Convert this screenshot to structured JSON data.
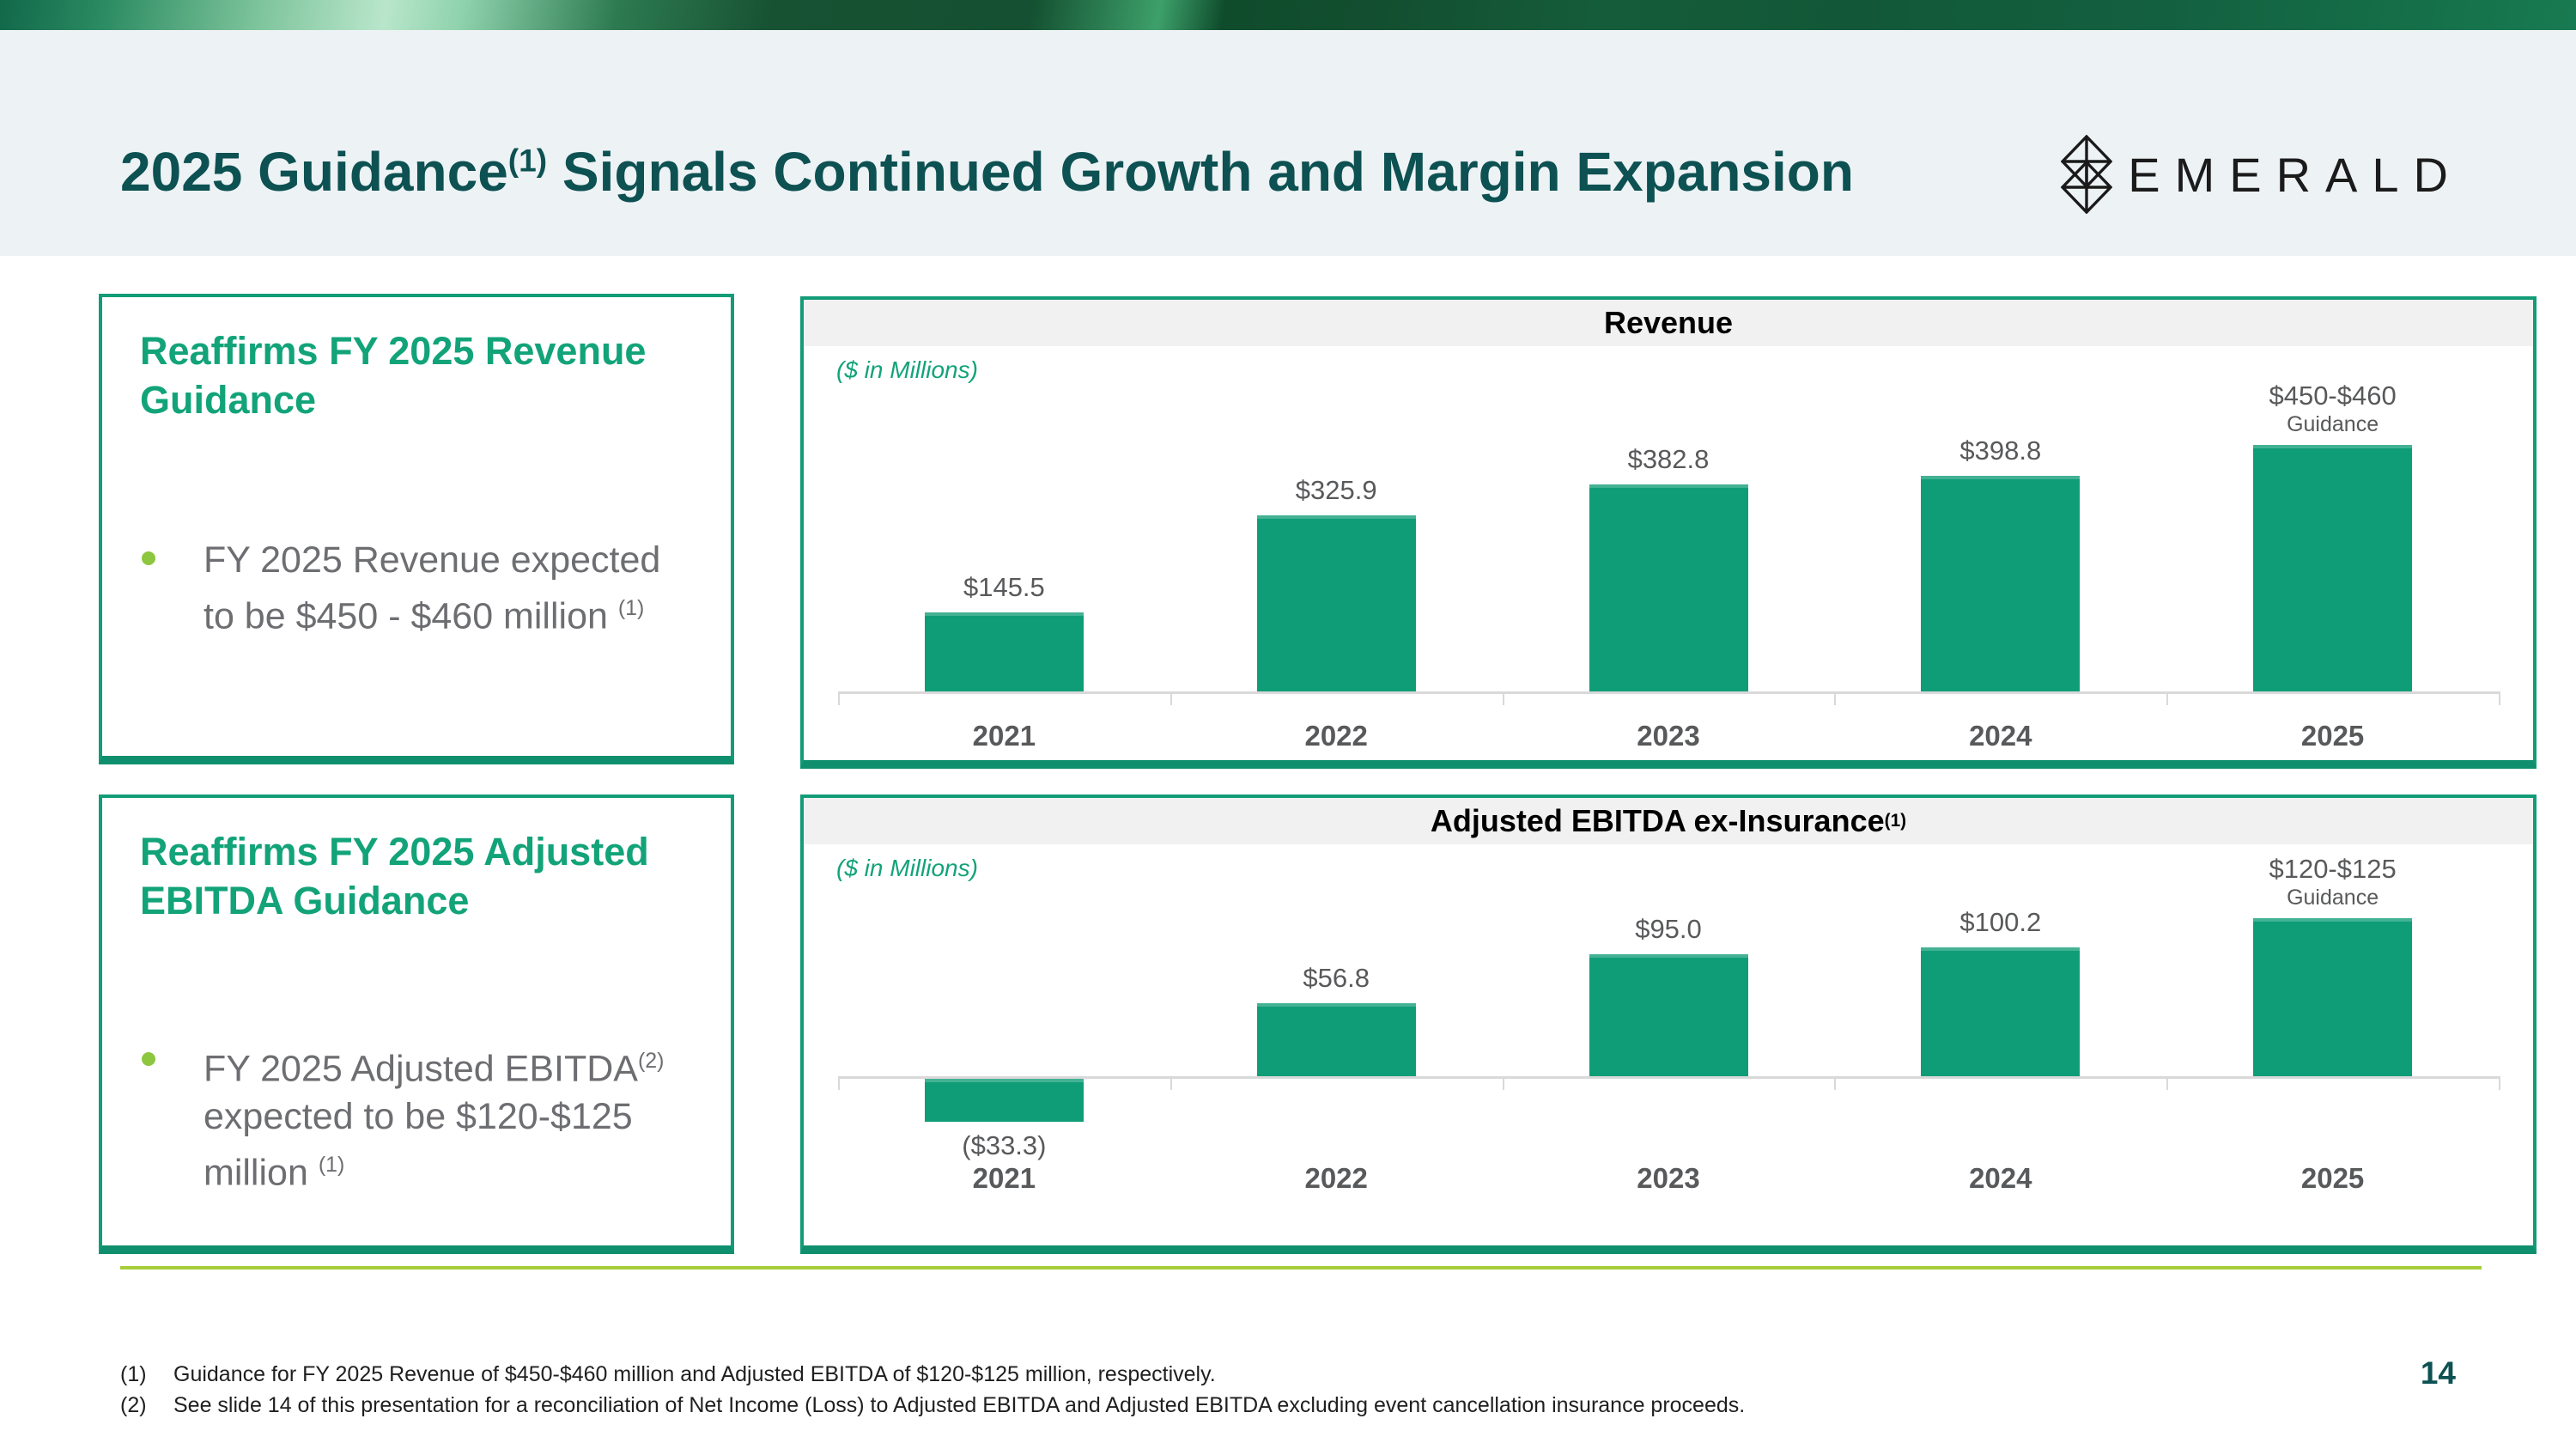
{
  "slide": {
    "title_pre": "2025 Guidance",
    "title_sup": "(1)",
    "title_post": " Signals Continued Growth and Margin Expansion",
    "page_number": "14"
  },
  "logo": {
    "text": "EMERALD",
    "icon": "emerald-diamond-mark"
  },
  "colors": {
    "accent_green": "#129c77",
    "bar_green": "#0f9d77",
    "heading_green": "#12a379",
    "bullet_green": "#8dc63f",
    "title_teal": "#0d5152",
    "divider_green": "#a6ce39",
    "body_gray": "#6d6e71",
    "label_gray": "#58595b",
    "header_band": "#edf2f5",
    "panel_head_gray": "#f1f1f2"
  },
  "boxes": [
    {
      "title": "Reaffirms FY 2025 Revenue Guidance",
      "bullet_t1": "FY 2025 Revenue expected to be $450 - $460 million ",
      "bullet_s1": "(1)"
    },
    {
      "title": "Reaffirms FY 2025 Adjusted EBITDA Guidance",
      "bullet_t1": "FY 2025 Adjusted EBITDA",
      "bullet_s1": "(2)",
      "bullet_t2": " expected to be $120-$125 million ",
      "bullet_s2": "(1)"
    }
  ],
  "chart_data": [
    {
      "type": "bar",
      "title": "Revenue",
      "title_sup": "",
      "units_note": "($ in Millions)",
      "categories": [
        "2021",
        "2022",
        "2023",
        "2024",
        "2025"
      ],
      "values": [
        145.5,
        325.9,
        382.8,
        398.8,
        455
      ],
      "labels": [
        "$145.5",
        "$325.9",
        "$382.8",
        "$398.8",
        "$450-$460"
      ],
      "sublabels": [
        "",
        "",
        "",
        "",
        "Guidance"
      ],
      "bar_color": "#0f9d77",
      "ylim": [
        0,
        480
      ],
      "grid": false,
      "legend": "none"
    },
    {
      "type": "bar",
      "title": "Adjusted EBITDA ex-Insurance",
      "title_sup": "(1)",
      "units_note": "($ in Millions)",
      "categories": [
        "2021",
        "2022",
        "2023",
        "2024",
        "2025"
      ],
      "values": [
        -33.3,
        56.8,
        95.0,
        100.2,
        122.5
      ],
      "labels": [
        "($33.3)",
        "$56.8",
        "$95.0",
        "$100.2",
        "$120-$125"
      ],
      "sublabels": [
        "",
        "",
        "",
        "",
        "Guidance"
      ],
      "bar_color": "#0f9d77",
      "ylim": [
        -45,
        135
      ],
      "grid": false,
      "legend": "none"
    }
  ],
  "footnotes": [
    {
      "marker": "(1)",
      "text": "Guidance for FY 2025 Revenue of $450-$460 million and Adjusted EBITDA of $120-$125 million, respectively."
    },
    {
      "marker": "(2)",
      "text": "See slide 14 of this presentation for a reconciliation of Net Income (Loss) to Adjusted EBITDA and Adjusted EBITDA excluding event cancellation insurance proceeds."
    }
  ]
}
